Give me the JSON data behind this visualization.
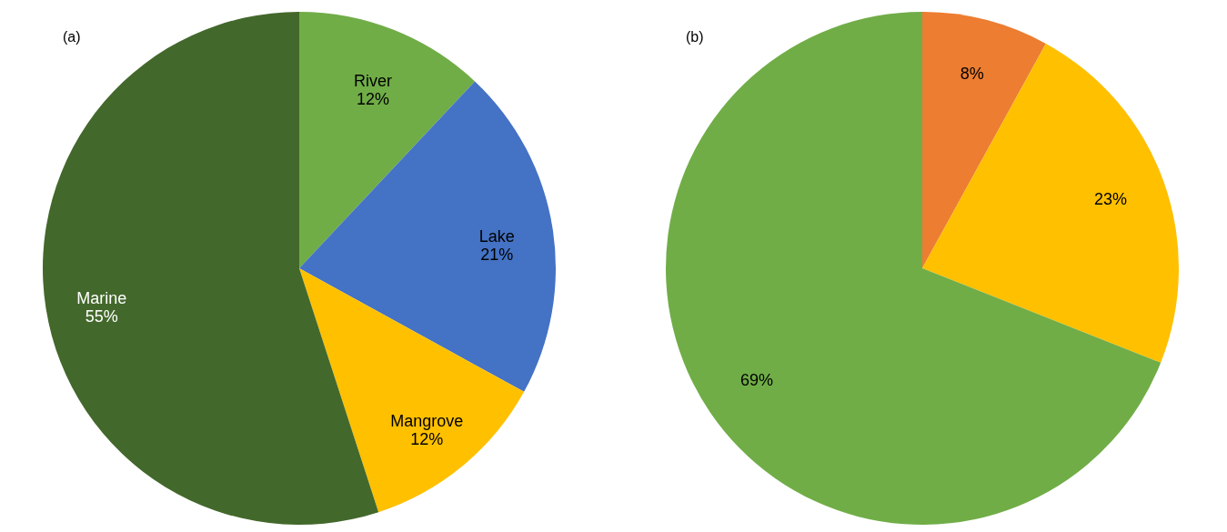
{
  "chart_data": [
    {
      "type": "pie",
      "title": "(a)",
      "categories": [
        "River",
        "Lake",
        "Mangrove",
        "Marine"
      ],
      "values": [
        12,
        21,
        12,
        55
      ],
      "colors": [
        "#70ad47",
        "#4472c4",
        "#ffc000",
        "#43682b"
      ],
      "value_labels": [
        "12%",
        "21%",
        "12%",
        "55%"
      ],
      "legend": false
    },
    {
      "type": "pie",
      "title": "(b)",
      "categories": [
        null,
        null,
        null
      ],
      "values": [
        8,
        23,
        69
      ],
      "colors": [
        "#ed7d31",
        "#ffc000",
        "#70ad47"
      ],
      "value_labels": [
        "8%",
        "23%",
        "69%"
      ],
      "legend": false
    }
  ]
}
